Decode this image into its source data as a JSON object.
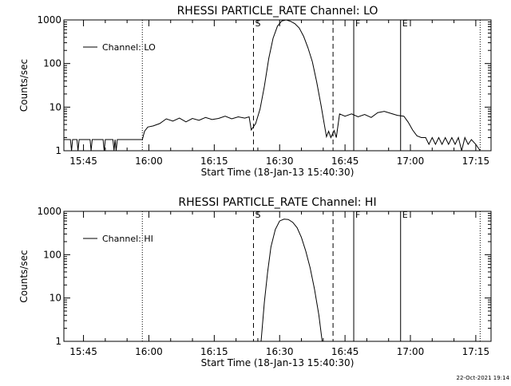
{
  "footer_timestamp": "22-Oct-2021 19:14",
  "chart_data": [
    {
      "type": "line",
      "title": "RHESSI PARTICLE_RATE Channel: LO",
      "xlabel": "Start Time (18-Jan-13 15:40:30)",
      "ylabel": "Counts/sec",
      "yscale": "log",
      "ylim": [
        1,
        1000
      ],
      "xlim": [
        "15:40:30",
        "17:18:30"
      ],
      "x_ticks": [
        "15:45",
        "16:00",
        "16:15",
        "16:30",
        "16:45",
        "17:00",
        "17:15"
      ],
      "y_ticks": [
        "1",
        "10",
        "100",
        "1000"
      ],
      "legend": {
        "position": "top-left",
        "entries": [
          "Channel: LO"
        ]
      },
      "markers": [
        {
          "label": "",
          "time": "15:58:30",
          "style": "dotted"
        },
        {
          "label": "S",
          "time": "16:24:00",
          "style": "dashed"
        },
        {
          "label": "",
          "time": "16:42:15",
          "style": "dashed"
        },
        {
          "label": "F",
          "time": "16:47:00",
          "style": "solid"
        },
        {
          "label": "E",
          "time": "16:57:45",
          "style": "solid"
        },
        {
          "label": "",
          "time": "17:16:00",
          "style": "dotted"
        }
      ],
      "series": [
        {
          "name": "Channel: LO",
          "points": [
            [
              "15:40:30",
              1.8
            ],
            [
              "15:42:00",
              1.8
            ],
            [
              "15:42:15",
              1.0
            ],
            [
              "15:42:30",
              1.8
            ],
            [
              "15:43:30",
              1.8
            ],
            [
              "15:43:45",
              1.0
            ],
            [
              "15:44:00",
              1.8
            ],
            [
              "15:46:30",
              1.8
            ],
            [
              "15:46:45",
              1.0
            ],
            [
              "15:47:00",
              1.8
            ],
            [
              "15:49:30",
              1.8
            ],
            [
              "15:49:45",
              1.0
            ],
            [
              "15:50:00",
              1.8
            ],
            [
              "15:51:45",
              1.8
            ],
            [
              "15:52:00",
              1.0
            ],
            [
              "15:52:15",
              1.8
            ],
            [
              "15:52:30",
              1.0
            ],
            [
              "15:52:45",
              1.8
            ],
            [
              "15:58:30",
              1.8
            ],
            [
              "15:59:00",
              2.8
            ],
            [
              "15:59:45",
              3.5
            ],
            [
              "16:01:00",
              3.7
            ],
            [
              "16:02:30",
              4.2
            ],
            [
              "16:04:00",
              5.4
            ],
            [
              "16:05:30",
              4.8
            ],
            [
              "16:07:00",
              5.6
            ],
            [
              "16:08:30",
              4.6
            ],
            [
              "16:10:00",
              5.5
            ],
            [
              "16:11:30",
              5.0
            ],
            [
              "16:13:00",
              5.8
            ],
            [
              "16:14:30",
              5.2
            ],
            [
              "16:16:00",
              5.5
            ],
            [
              "16:17:30",
              6.2
            ],
            [
              "16:19:00",
              5.4
            ],
            [
              "16:20:30",
              6.0
            ],
            [
              "16:22:00",
              5.6
            ],
            [
              "16:23:00",
              6.0
            ],
            [
              "16:23:30",
              3.0
            ],
            [
              "16:24:30",
              4.2
            ],
            [
              "16:25:30",
              9.0
            ],
            [
              "16:26:30",
              30
            ],
            [
              "16:27:30",
              130
            ],
            [
              "16:28:30",
              380
            ],
            [
              "16:29:30",
              720
            ],
            [
              "16:30:30",
              950
            ],
            [
              "16:31:30",
              1000
            ],
            [
              "16:32:30",
              930
            ],
            [
              "16:33:30",
              820
            ],
            [
              "16:34:30",
              650
            ],
            [
              "16:35:30",
              420
            ],
            [
              "16:36:30",
              230
            ],
            [
              "16:37:30",
              110
            ],
            [
              "16:38:30",
              38
            ],
            [
              "16:39:30",
              11
            ],
            [
              "16:40:15",
              4
            ],
            [
              "16:40:45",
              2.1
            ],
            [
              "16:41:15",
              2.8
            ],
            [
              "16:41:45",
              2.0
            ],
            [
              "16:42:30",
              2.9
            ],
            [
              "16:43:00",
              2.0
            ],
            [
              "16:43:45",
              7.0
            ],
            [
              "16:45:00",
              6.2
            ],
            [
              "16:46:30",
              7.0
            ],
            [
              "16:48:00",
              6.0
            ],
            [
              "16:49:30",
              6.8
            ],
            [
              "16:51:00",
              5.8
            ],
            [
              "16:52:30",
              7.5
            ],
            [
              "16:54:00",
              8.0
            ],
            [
              "16:55:30",
              7.2
            ],
            [
              "16:57:00",
              6.5
            ],
            [
              "16:58:30",
              6.2
            ],
            [
              "16:59:30",
              4.5
            ],
            [
              "17:00:30",
              3.0
            ],
            [
              "17:01:30",
              2.2
            ],
            [
              "17:02:30",
              2.0
            ],
            [
              "17:03:30",
              2.0
            ],
            [
              "17:04:15",
              1.4
            ],
            [
              "17:05:00",
              2.0
            ],
            [
              "17:05:45",
              1.4
            ],
            [
              "17:06:30",
              2.0
            ],
            [
              "17:07:15",
              1.4
            ],
            [
              "17:08:00",
              2.0
            ],
            [
              "17:08:45",
              1.4
            ],
            [
              "17:09:30",
              2.0
            ],
            [
              "17:10:15",
              1.4
            ],
            [
              "17:11:00",
              2.0
            ],
            [
              "17:11:45",
              1.0
            ],
            [
              "17:12:30",
              2.0
            ],
            [
              "17:13:15",
              1.4
            ],
            [
              "17:14:00",
              1.8
            ],
            [
              "17:15:00",
              1.4
            ],
            [
              "17:16:00",
              1.0
            ]
          ]
        }
      ]
    },
    {
      "type": "line",
      "title": "RHESSI PARTICLE_RATE Channel: HI",
      "xlabel": "Start Time (18-Jan-13 15:40:30)",
      "ylabel": "Counts/sec",
      "yscale": "log",
      "ylim": [
        1,
        1000
      ],
      "xlim": [
        "15:40:30",
        "17:18:30"
      ],
      "x_ticks": [
        "15:45",
        "16:00",
        "16:15",
        "16:30",
        "16:45",
        "17:00",
        "17:15"
      ],
      "y_ticks": [
        "1",
        "10",
        "100",
        "1000"
      ],
      "legend": {
        "position": "top-left",
        "entries": [
          "Channel: HI"
        ]
      },
      "markers": [
        {
          "label": "",
          "time": "15:58:30",
          "style": "dotted"
        },
        {
          "label": "S",
          "time": "16:24:00",
          "style": "dashed"
        },
        {
          "label": "",
          "time": "16:42:15",
          "style": "dashed"
        },
        {
          "label": "F",
          "time": "16:47:00",
          "style": "solid"
        },
        {
          "label": "E",
          "time": "16:57:45",
          "style": "solid"
        },
        {
          "label": "",
          "time": "17:16:00",
          "style": "dotted"
        }
      ],
      "series": [
        {
          "name": "Channel: HI",
          "points": [
            [
              "16:25:45",
              1.0
            ],
            [
              "16:26:30",
              8
            ],
            [
              "16:27:15",
              40
            ],
            [
              "16:28:00",
              150
            ],
            [
              "16:29:00",
              380
            ],
            [
              "16:30:00",
              600
            ],
            [
              "16:31:00",
              660
            ],
            [
              "16:32:00",
              650
            ],
            [
              "16:33:00",
              560
            ],
            [
              "16:34:00",
              420
            ],
            [
              "16:35:00",
              250
            ],
            [
              "16:36:00",
              120
            ],
            [
              "16:37:00",
              50
            ],
            [
              "16:38:00",
              16
            ],
            [
              "16:39:00",
              4
            ],
            [
              "16:39:45",
              1.0
            ]
          ]
        }
      ]
    }
  ]
}
